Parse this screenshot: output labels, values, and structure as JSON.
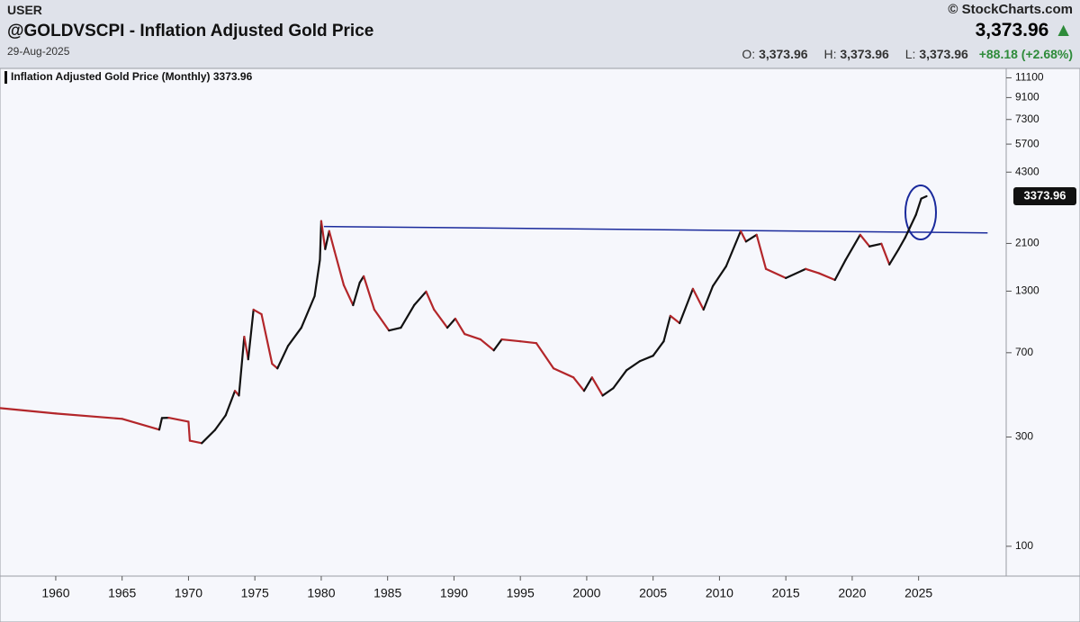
{
  "header": {
    "user": "USER",
    "title": "@GOLDVSCPI - Inflation Adjusted Gold Price",
    "date": "29-Aug-2025",
    "brand": "© StockCharts.com",
    "price": "3,373.96",
    "arrow": "▲",
    "open_label": "O:",
    "open": "3,373.96",
    "high_label": "H:",
    "high": "3,373.96",
    "low_label": "L:",
    "low": "3,373.96",
    "change": "+88.18 (+2.68%)"
  },
  "chart_data": {
    "type": "line",
    "legend_label": "Inflation Adjusted Gold Price (Monthly) 3373.96",
    "log_scale": true,
    "xlim": [
      1955.8,
      2031.6
    ],
    "ylim": [
      74.1,
      12200
    ],
    "xticks": [
      1960,
      1965,
      1970,
      1975,
      1980,
      1985,
      1990,
      1995,
      2000,
      2005,
      2010,
      2015,
      2020,
      2025
    ],
    "yticks": [
      100,
      300,
      700,
      1300,
      2100,
      4300,
      5700,
      7300,
      9100,
      11100
    ],
    "up_color": "#111111",
    "down_color": "#b3262a",
    "last_value_label": "3373.96",
    "trendline": {
      "color": "#1a2a9c",
      "x": [
        1980.2,
        2030.2
      ],
      "values": [
        2490,
        2335
      ]
    },
    "series": [
      {
        "name": "Inflation Adjusted Gold Price (Monthly)",
        "x": [
          1955.8,
          1960,
          1965,
          1967.8,
          1968,
          1968.5,
          1970,
          1970.1,
          1971,
          1972,
          1972.8,
          1973.5,
          1973.8,
          1974.2,
          1974.5,
          1974.9,
          1975.5,
          1976.3,
          1976.7,
          1977.5,
          1978.5,
          1979.5,
          1979.9,
          1980.0,
          1980.3,
          1980.6,
          1981,
          1981.7,
          1982.4,
          1982.9,
          1983.2,
          1984,
          1985.1,
          1986,
          1987,
          1987.9,
          1988.5,
          1989.5,
          1990.1,
          1990.8,
          1992,
          1993,
          1993.6,
          1995,
          1996.2,
          1997.5,
          1999,
          1999.8,
          2000.4,
          2001.2,
          2002,
          2003,
          2004,
          2005,
          2005.8,
          2006.3,
          2007,
          2008,
          2008.8,
          2009.5,
          2010.5,
          2011.6,
          2012,
          2012.8,
          2013.5,
          2015,
          2016.5,
          2017.5,
          2018.7,
          2019.5,
          2020.6,
          2021.3,
          2022.2,
          2022.8,
          2023.5,
          2024,
          2024.8,
          2025.2,
          2025.6
        ],
        "values": [
          401,
          380,
          360,
          323,
          363,
          364,
          350,
          289,
          282,
          322,
          373,
          477,
          455,
          822,
          655,
          1079,
          1031,
          626,
          598,
          750,
          900,
          1236,
          1778,
          2630,
          1983,
          2377,
          1946,
          1380,
          1129,
          1416,
          1510,
          1079,
          875,
          900,
          1129,
          1294,
          1079,
          900,
          986,
          845,
          800,
          717,
          800,
          785,
          771,
          598,
          546,
          477,
          546,
          455,
          490,
          587,
          643,
          679,
          785,
          1014,
          942,
          1330,
          1079,
          1367,
          1668,
          2377,
          2140,
          2290,
          1625,
          1483,
          1625,
          1556,
          1455,
          1778,
          2290,
          2038,
          2093,
          1700,
          1983,
          2233,
          2800,
          3296,
          3373.96
        ]
      }
    ]
  }
}
